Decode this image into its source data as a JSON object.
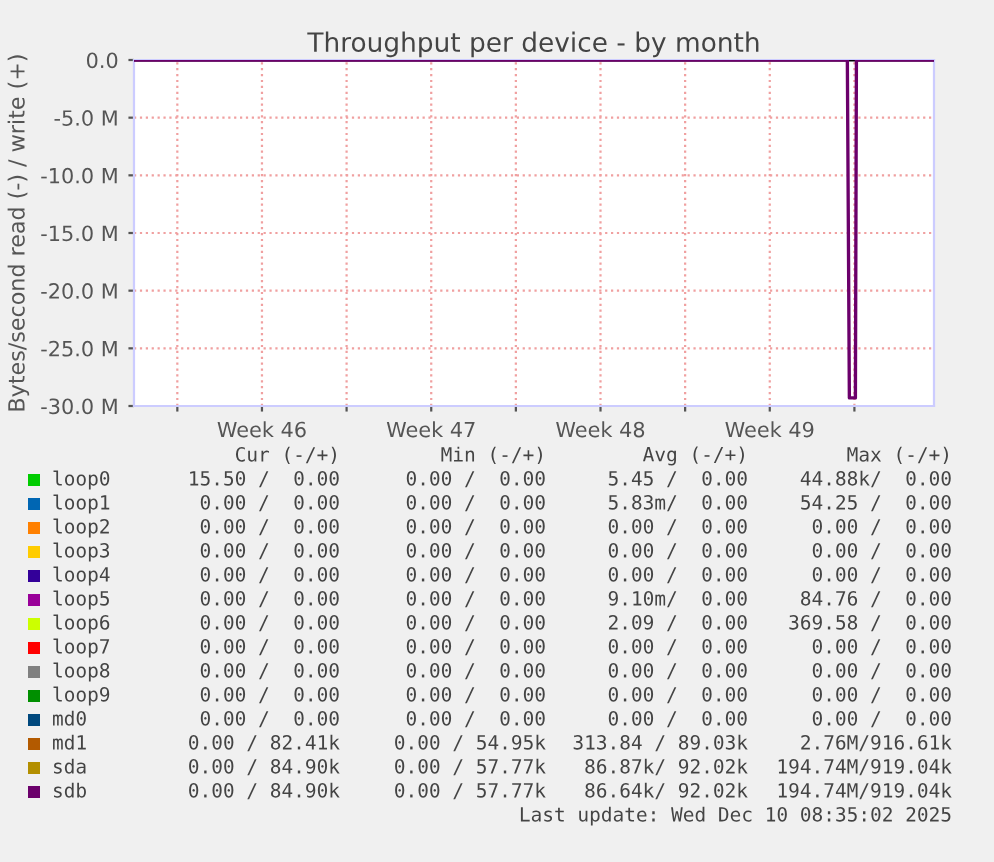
{
  "chart_data": {
    "type": "line",
    "title": "Throughput per device - by month",
    "ylabel": "Bytes/second read (-) / write (+)",
    "xlim": [
      "2025-11-08T05:00",
      "2025-12-11T07:00"
    ],
    "xticks": [
      {
        "value": "2025-11-10",
        "label": null
      },
      {
        "value": "2025-11-13T12:00",
        "label": "Week 46"
      },
      {
        "value": "2025-11-17",
        "label": null
      },
      {
        "value": "2025-11-20T12:00",
        "label": "Week 47"
      },
      {
        "value": "2025-11-24",
        "label": null
      },
      {
        "value": "2025-11-27T12:00",
        "label": "Week 48"
      },
      {
        "value": "2025-12-01",
        "label": null
      },
      {
        "value": "2025-12-04T12:00",
        "label": "Week 49"
      },
      {
        "value": "2025-12-08",
        "label": null
      }
    ],
    "ylim": [
      -30,
      0
    ],
    "yticks": [
      {
        "value": -30,
        "label": "-30.0 M"
      },
      {
        "value": -25,
        "label": "-25.0 M"
      },
      {
        "value": -20,
        "label": "-20.0 M"
      },
      {
        "value": -15,
        "label": "-15.0 M"
      },
      {
        "value": -10,
        "label": "-10.0 M"
      },
      {
        "value": -5,
        "label": "-5.0 M"
      },
      {
        "value": 0,
        "label": "0.0"
      }
    ],
    "grid": true,
    "legend": "bottom",
    "marker": "none",
    "line_style": "solid",
    "ref_lines": [
      {
        "axis": "y",
        "value": 0,
        "color": "#000000"
      }
    ],
    "series": [
      {
        "name": "loop0",
        "color": "#00cc00",
        "values": [
          null,
          null
        ]
      },
      {
        "name": "loop1",
        "color": "#0066b3",
        "values": [
          null,
          null
        ]
      },
      {
        "name": "loop2",
        "color": "#ff8000",
        "values": [
          null,
          null
        ]
      },
      {
        "name": "loop3",
        "color": "#ffcc00",
        "values": [
          null,
          null
        ]
      },
      {
        "name": "loop4",
        "color": "#330099",
        "values": [
          null,
          null
        ]
      },
      {
        "name": "loop5",
        "color": "#990099",
        "values": [
          null,
          null
        ]
      },
      {
        "name": "loop6",
        "color": "#ccff00",
        "values": [
          null,
          null
        ]
      },
      {
        "name": "loop7",
        "color": "#ff0000",
        "values": [
          null,
          null
        ]
      },
      {
        "name": "loop8",
        "color": "#808080",
        "values": [
          null,
          null
        ]
      },
      {
        "name": "loop9",
        "color": "#008f00",
        "values": [
          null,
          null
        ]
      },
      {
        "name": "md0",
        "color": "#00487d",
        "values": [
          null,
          null
        ]
      },
      {
        "name": "md1",
        "color": "#b35a00",
        "values": [
          null,
          null
        ]
      },
      {
        "name": "sda",
        "color": "#b38f00",
        "values": [
          null,
          null
        ]
      },
      {
        "name": "sdb",
        "color": "#6b006b",
        "x": [
          "2025-11-08T05:00",
          "2025-12-07T17:00",
          "2025-12-07T19:00",
          "2025-12-08T01:00",
          "2025-12-08T02:00",
          "2025-12-11T07:00"
        ],
        "values": [
          0,
          0,
          -29.3,
          -29.3,
          0,
          0
        ]
      }
    ],
    "annotations": [
      "Cur (-/+)",
      "Min (-/+)",
      "Avg (-/+)",
      "Max (-/+)",
      "15.50 /  0.00",
      "0.00 /  0.00",
      "5.45 /  0.00",
      "44.88k/  0.00",
      "0.00 /  0.00",
      "0.00 /  0.00",
      "5.83m/  0.00",
      "54.25 /  0.00",
      "0.00 /  0.00",
      "0.00 /  0.00",
      "0.00 /  0.00",
      "0.00 /  0.00",
      "0.00 /  0.00",
      "0.00 /  0.00",
      "0.00 /  0.00",
      "0.00 /  0.00",
      "0.00 /  0.00",
      "0.00 /  0.00",
      "0.00 /  0.00",
      "0.00 /  0.00",
      "0.00 /  0.00",
      "0.00 /  0.00",
      "9.10m/  0.00",
      "84.76 /  0.00",
      "0.00 /  0.00",
      "0.00 /  0.00",
      "2.09 /  0.00",
      "369.58 /  0.00",
      "0.00 /  0.00",
      "0.00 /  0.00",
      "0.00 /  0.00",
      "0.00 /  0.00",
      "0.00 /  0.00",
      "0.00 /  0.00",
      "0.00 /  0.00",
      "0.00 /  0.00",
      "0.00 /  0.00",
      "0.00 /  0.00",
      "0.00 /  0.00",
      "0.00 /  0.00",
      "0.00 /  0.00",
      "0.00 /  0.00",
      "0.00 /  0.00",
      "0.00 /  0.00",
      "0.00 / 82.41k",
      "0.00 / 54.95k",
      "313.84 / 89.03k",
      "2.76M/916.61k",
      "0.00 / 84.90k",
      "0.00 / 57.77k",
      "86.87k/ 92.02k",
      "194.74M/919.04k",
      "0.00 / 84.90k",
      "0.00 / 57.77k",
      "86.64k/ 92.02k",
      "194.74M/919.04k",
      "Last update: Wed Dec 10 08:35:02 2025"
    ]
  }
}
